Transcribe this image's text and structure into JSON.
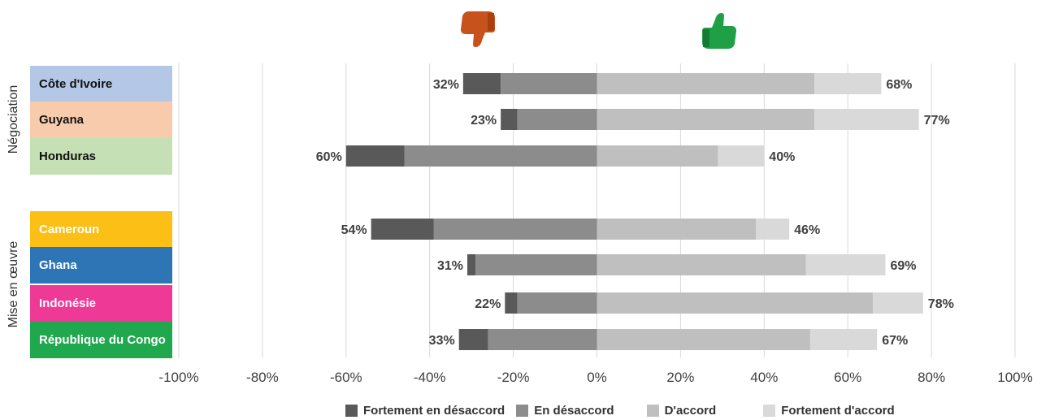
{
  "icons": {
    "thumbs_down": "thumbs-down-icon",
    "thumbs_up": "thumbs-up-icon",
    "thumbs_down_color": "#c8521c",
    "thumbs_up_color": "#1fa047"
  },
  "groups": [
    {
      "label": "Négociation",
      "rows": [
        0,
        1,
        2
      ]
    },
    {
      "label": "Mise en œuvre",
      "rows": [
        3,
        4,
        5,
        6
      ]
    }
  ],
  "rows": [
    {
      "label": "Côte d'Ivoire",
      "bg": "#b4c7e7",
      "fg": "#111111"
    },
    {
      "label": "Guyana",
      "bg": "#f8cbad",
      "fg": "#111111"
    },
    {
      "label": "Honduras",
      "bg": "#c5e0b4",
      "fg": "#111111"
    },
    {
      "label": "Cameroun",
      "bg": "#fcbf16",
      "fg": "#ffffff"
    },
    {
      "label": "Ghana",
      "bg": "#2e75b6",
      "fg": "#ffffff"
    },
    {
      "label": "Indonésie",
      "bg": "#ee3a96",
      "fg": "#ffffff"
    },
    {
      "label": "République du Congo",
      "bg": "#20a84e",
      "fg": "#ffffff"
    }
  ],
  "chart_data": {
    "type": "bar",
    "orientation": "horizontal-diverging-stacked",
    "categories": [
      "Côte d'Ivoire",
      "Guyana",
      "Honduras",
      "Cameroun",
      "Ghana",
      "Indonésie",
      "République du Congo"
    ],
    "series": [
      {
        "name": "Fortement en désaccord",
        "color": "#595959",
        "values": [
          -9,
          -4,
          -14,
          -15,
          -2,
          -3,
          -7
        ]
      },
      {
        "name": "En désaccord",
        "color": "#8c8c8c",
        "values": [
          -23,
          -19,
          -46,
          -39,
          -29,
          -19,
          -26
        ]
      },
      {
        "name": "D'accord",
        "color": "#bfbfbf",
        "values": [
          52,
          52,
          29,
          38,
          50,
          66,
          51
        ]
      },
      {
        "name": "Fortement d'accord",
        "color": "#d9d9d9",
        "values": [
          16,
          25,
          11,
          8,
          19,
          12,
          16
        ]
      }
    ],
    "neg_totals": [
      "32%",
      "23%",
      "60%",
      "54%",
      "31%",
      "22%",
      "33%"
    ],
    "pos_totals": [
      "68%",
      "77%",
      "40%",
      "46%",
      "69%",
      "78%",
      "67%"
    ],
    "xlim": [
      -100,
      100
    ],
    "xticks": [
      -100,
      -80,
      -60,
      -40,
      -20,
      0,
      20,
      40,
      60,
      80,
      100
    ],
    "xtick_labels": [
      "-100%",
      "-80%",
      "-60%",
      "-40%",
      "-20%",
      "0%",
      "20%",
      "40%",
      "60%",
      "80%",
      "100%"
    ],
    "grid": "vertical",
    "legend": "bottom"
  }
}
